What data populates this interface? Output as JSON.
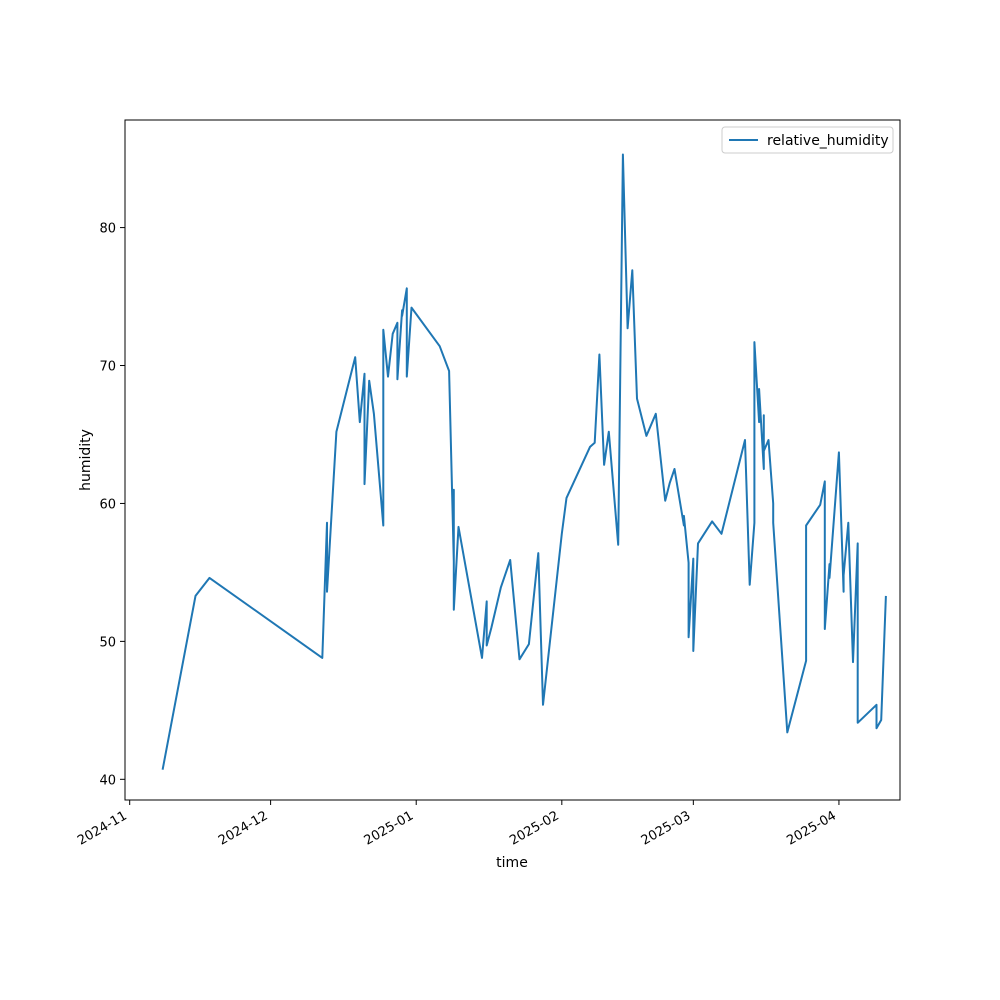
{
  "chart_data": {
    "type": "line",
    "title": "",
    "xlabel": "time",
    "ylabel": "humidity",
    "x_type": "date",
    "xlim": [
      "2024-10-31",
      "2025-04-14"
    ],
    "ylim": [
      38.5,
      87.8
    ],
    "x_ticks": [
      {
        "value": "2024-11-01",
        "label": "2024-11"
      },
      {
        "value": "2024-12-01",
        "label": "2024-12"
      },
      {
        "value": "2025-01-01",
        "label": "2025-01"
      },
      {
        "value": "2025-02-01",
        "label": "2025-02"
      },
      {
        "value": "2025-03-01",
        "label": "2025-03"
      },
      {
        "value": "2025-04-01",
        "label": "2025-04"
      }
    ],
    "y_ticks": [
      40,
      50,
      60,
      70,
      80
    ],
    "grid": false,
    "legend": {
      "position": "top-right"
    },
    "series": [
      {
        "name": "relative_humidity",
        "color": "#1f77b4",
        "x": [
          "2024-11-08",
          "2024-11-15",
          "2024-11-18",
          "2024-12-12",
          "2024-12-13",
          "2024-12-13",
          "2024-12-15",
          "2024-12-19",
          "2024-12-20",
          "2024-12-21",
          "2024-12-21",
          "2024-12-22",
          "2024-12-23",
          "2024-12-25",
          "2024-12-25",
          "2024-12-26",
          "2024-12-27",
          "2024-12-28",
          "2024-12-28",
          "2024-12-29",
          "2024-12-29",
          "2024-12-30",
          "2024-12-30",
          "2024-12-31",
          "2025-01-06",
          "2025-01-08",
          "2025-01-09",
          "2025-01-09",
          "2025-01-09",
          "2025-01-10",
          "2025-01-15",
          "2025-01-16",
          "2025-01-16",
          "2025-01-17",
          "2025-01-19",
          "2025-01-21",
          "2025-01-23",
          "2025-01-25",
          "2025-01-27",
          "2025-01-28",
          "2025-02-01",
          "2025-02-02",
          "2025-02-07",
          "2025-02-08",
          "2025-02-09",
          "2025-02-10",
          "2025-02-11",
          "2025-02-13",
          "2025-02-14",
          "2025-02-15",
          "2025-02-16",
          "2025-02-17",
          "2025-02-19",
          "2025-02-21",
          "2025-02-23",
          "2025-02-24",
          "2025-02-25",
          "2025-02-27",
          "2025-02-27",
          "2025-02-28",
          "2025-02-28",
          "2025-03-01",
          "2025-03-01",
          "2025-03-01",
          "2025-03-02",
          "2025-03-05",
          "2025-03-07",
          "2025-03-12",
          "2025-03-13",
          "2025-03-14",
          "2025-03-14",
          "2025-03-15",
          "2025-03-15",
          "2025-03-16",
          "2025-03-16",
          "2025-03-16",
          "2025-03-17",
          "2025-03-18",
          "2025-03-18",
          "2025-03-21",
          "2025-03-25",
          "2025-03-25",
          "2025-03-28",
          "2025-03-29",
          "2025-03-29",
          "2025-03-30",
          "2025-03-30",
          "2025-04-01",
          "2025-04-02",
          "2025-04-02",
          "2025-04-03",
          "2025-04-04",
          "2025-04-05",
          "2025-04-05",
          "2025-04-05",
          "2025-04-09",
          "2025-04-09",
          "2025-04-10",
          "2025-04-11",
          "2025-04-11"
        ],
        "y": [
          40.7,
          53.3,
          54.6,
          48.8,
          58.6,
          53.6,
          65.2,
          70.6,
          65.9,
          69.4,
          61.4,
          68.9,
          66.5,
          58.4,
          72.6,
          69.2,
          72.3,
          73.1,
          69.0,
          74.0,
          73.6,
          75.6,
          69.2,
          74.2,
          71.4,
          69.6,
          55.8,
          61.0,
          52.3,
          58.3,
          48.8,
          52.9,
          49.7,
          51.0,
          53.9,
          55.9,
          48.7,
          49.8,
          56.4,
          45.4,
          57.8,
          60.4,
          64.1,
          64.4,
          70.8,
          62.8,
          65.2,
          57.0,
          85.3,
          72.7,
          76.9,
          67.6,
          64.9,
          66.5,
          60.2,
          61.5,
          62.5,
          58.4,
          59.1,
          55.7,
          50.3,
          56.0,
          55.6,
          49.3,
          57.1,
          58.7,
          57.8,
          64.6,
          54.1,
          58.6,
          71.7,
          65.9,
          68.3,
          62.5,
          66.4,
          63.8,
          64.6,
          60.0,
          58.6,
          43.4,
          48.6,
          58.4,
          59.9,
          61.6,
          50.9,
          55.6,
          54.6,
          63.7,
          53.6,
          54.8,
          58.6,
          48.5,
          57.1,
          53.2,
          44.1,
          45.4,
          43.7,
          44.3,
          53.3,
          53.3
        ]
      }
    ]
  }
}
